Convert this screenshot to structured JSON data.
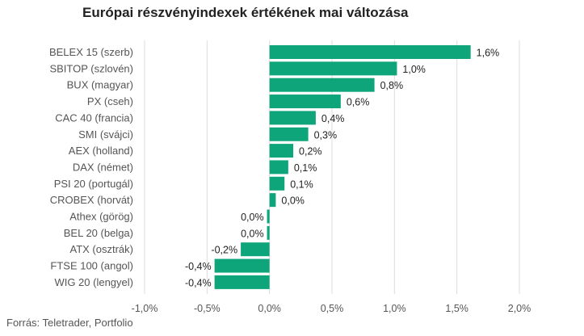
{
  "chart_data": {
    "type": "bar",
    "orientation": "horizontal",
    "title": "Európai részvényindexek értékének mai változása",
    "source": "Forrás: Teletrader, Portfolio",
    "bar_color": "#0ea57a",
    "grid": true,
    "xlim": [
      -1.0,
      2.0
    ],
    "x_ticks": [
      -1.0,
      -0.5,
      0.0,
      0.5,
      1.0,
      1.5,
      2.0
    ],
    "x_tick_labels": [
      "-1,0%",
      "-0,5%",
      "0,0%",
      "0,5%",
      "1,0%",
      "1,5%",
      "2,0%"
    ],
    "categories": [
      "BELEX 15 (szerb)",
      "SBITOP (szlovén)",
      "BUX (magyar)",
      "PX (cseh)",
      "CAC 40 (francia)",
      "SMI (svájci)",
      "AEX (holland)",
      "DAX (német)",
      "PSI 20 (portugál)",
      "CROBEX (horvát)",
      "Athex (görög)",
      "BEL 20 (belga)",
      "ATX (osztrák)",
      "FTSE 100 (angol)",
      "WIG 20 (lengyel)"
    ],
    "values": [
      1.61,
      1.02,
      0.84,
      0.57,
      0.37,
      0.31,
      0.19,
      0.15,
      0.12,
      0.05,
      -0.02,
      -0.02,
      -0.23,
      -0.44,
      -0.44
    ],
    "data_labels": [
      "1,6%",
      "1,0%",
      "0,8%",
      "0,6%",
      "0,4%",
      "0,3%",
      "0,2%",
      "0,1%",
      "0,1%",
      "0,0%",
      "0,0%",
      "0,0%",
      "-0,2%",
      "-0,4%",
      "-0,4%"
    ]
  }
}
